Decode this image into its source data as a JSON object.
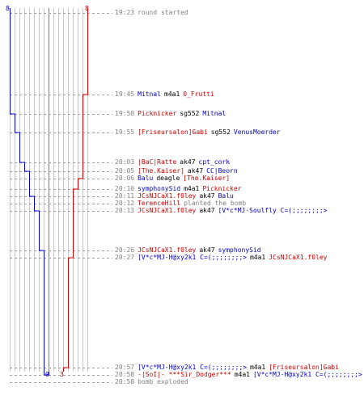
{
  "counts": {
    "ct_start": "8",
    "t_start": "8",
    "ct_end": "0",
    "t_end": "3"
  },
  "colors": {
    "ct": "#0000cc",
    "t": "#cc0000",
    "time": "#808080",
    "neutral": "#000000",
    "grid": "#c8c8c8",
    "divider": "#808080"
  },
  "events": [
    {
      "time": "19:23",
      "ct_alive": 8,
      "t_alive": 8,
      "parts": [
        {
          "text": "round started",
          "color": "grey"
        }
      ]
    },
    {
      "time": "19:45",
      "ct_alive": 8,
      "t_alive": 7,
      "parts": [
        {
          "text": "Mitnal",
          "color": "blue"
        },
        {
          "text": "m4a1",
          "color": "black"
        },
        {
          "text": "0_Frutti",
          "color": "red"
        }
      ]
    },
    {
      "time": "19:50",
      "ct_alive": 7,
      "t_alive": 7,
      "parts": [
        {
          "text": "Picknicker",
          "color": "red"
        },
        {
          "text": "sg552",
          "color": "black"
        },
        {
          "text": "Mitnal",
          "color": "blue"
        }
      ]
    },
    {
      "time": "19:55",
      "ct_alive": 6,
      "t_alive": 7,
      "parts": [
        {
          "text": "[Friseursalon]Gabi",
          "color": "red"
        },
        {
          "text": "sg552",
          "color": "black"
        },
        {
          "text": "VenusMoerder",
          "color": "blue"
        }
      ]
    },
    {
      "time": "20:03",
      "ct_alive": 5,
      "t_alive": 7,
      "parts": [
        {
          "text": "|BaC|Ratte",
          "color": "red"
        },
        {
          "text": "ak47",
          "color": "black"
        },
        {
          "text": "cpt_cork",
          "color": "blue"
        }
      ]
    },
    {
      "time": "20:05",
      "ct_alive": 4,
      "t_alive": 7,
      "parts": [
        {
          "text": "[The.Kaiser]",
          "color": "red"
        },
        {
          "text": "ak47",
          "color": "black"
        },
        {
          "text": "CC|Beorn",
          "color": "blue"
        }
      ]
    },
    {
      "time": "20:06",
      "ct_alive": 4,
      "t_alive": 6,
      "parts": [
        {
          "text": "Balu",
          "color": "blue"
        },
        {
          "text": "deagle",
          "color": "black"
        },
        {
          "text": "[The.Kaiser]",
          "color": "red"
        }
      ]
    },
    {
      "time": "20:10",
      "ct_alive": 4,
      "t_alive": 5,
      "parts": [
        {
          "text": "symphonySid",
          "color": "blue"
        },
        {
          "text": "m4a1",
          "color": "black"
        },
        {
          "text": "Picknicker",
          "color": "red"
        }
      ]
    },
    {
      "time": "20:11",
      "ct_alive": 3,
      "t_alive": 5,
      "parts": [
        {
          "text": "JCsNJCaX1.f0ley",
          "color": "red"
        },
        {
          "text": "ak47",
          "color": "black"
        },
        {
          "text": "Balu",
          "color": "blue"
        }
      ]
    },
    {
      "time": "20:12",
      "ct_alive": 3,
      "t_alive": 5,
      "parts": [
        {
          "text": "TerenceHill",
          "color": "red"
        },
        {
          "text": "planted the bomb",
          "color": "grey"
        }
      ]
    },
    {
      "time": "20:13",
      "ct_alive": 2,
      "t_alive": 5,
      "parts": [
        {
          "text": "JCsNJCaX1.f0ley",
          "color": "red"
        },
        {
          "text": "ak47",
          "color": "black"
        },
        {
          "text": "[V*c*MJ-Soulfly C=(;;;;;;;;>",
          "color": "blue"
        }
      ]
    },
    {
      "time": "20:26",
      "ct_alive": 1,
      "t_alive": 5,
      "parts": [
        {
          "text": "JCsNJCaX1.f0ley",
          "color": "red"
        },
        {
          "text": "ak47",
          "color": "black"
        },
        {
          "text": "symphonySid",
          "color": "blue"
        }
      ]
    },
    {
      "time": "20:27",
      "ct_alive": 1,
      "t_alive": 4,
      "parts": [
        {
          "text": "[V*c*MJ-H@xy2k1 C=(;;;;;;;;>",
          "color": "blue"
        },
        {
          "text": "m4a1",
          "color": "black"
        },
        {
          "text": "JCsNJCaX1.f0ley",
          "color": "red"
        }
      ]
    },
    {
      "time": "20:57",
      "ct_alive": 1,
      "t_alive": 3,
      "parts": [
        {
          "text": "[V*c*MJ-H@xy2k1 C=(;;;;;;;;>",
          "color": "blue"
        },
        {
          "text": "m4a1",
          "color": "black"
        },
        {
          "text": "[Friseursalon]Gabi",
          "color": "red"
        }
      ]
    },
    {
      "time": "20:58",
      "ct_alive": 0,
      "t_alive": 3,
      "parts": [
        {
          "text": "-|SoI|- ***Sir_Dodger***",
          "color": "red"
        },
        {
          "text": "m4a1",
          "color": "black"
        },
        {
          "text": "[V*c*MJ-H@xy2k1 C=(;;;;;;;;>",
          "color": "blue"
        }
      ]
    },
    {
      "time": "20:58",
      "ct_alive": 0,
      "t_alive": 3,
      "parts": [
        {
          "text": "bomb exploded",
          "color": "grey"
        }
      ]
    }
  ]
}
